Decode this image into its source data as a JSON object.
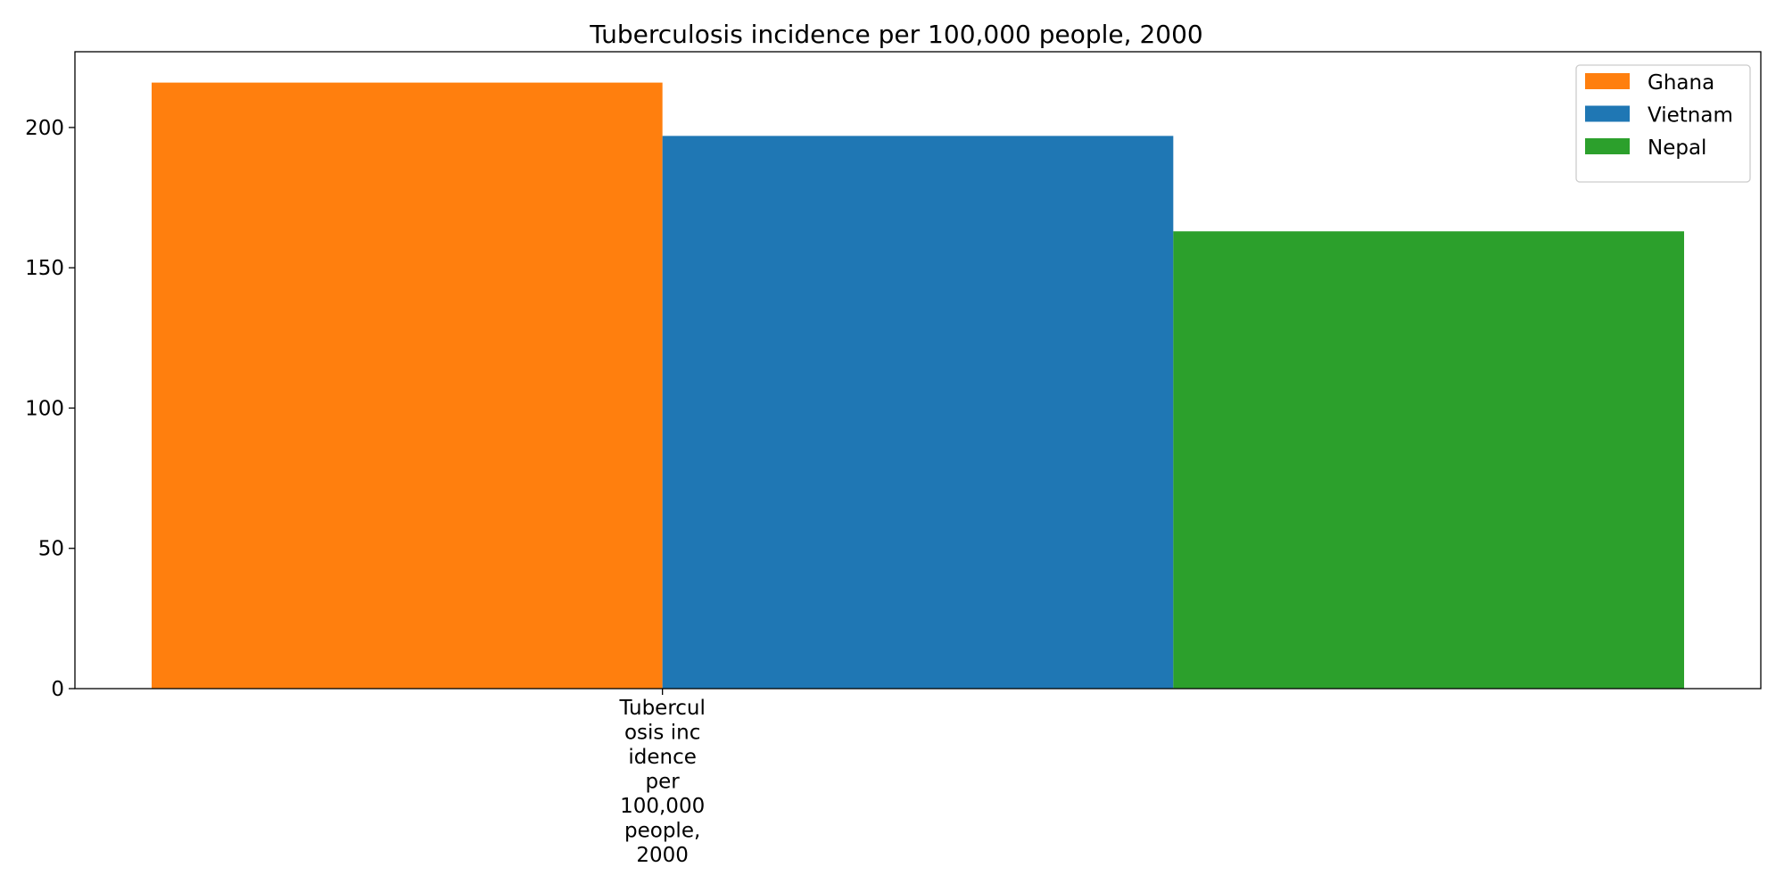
{
  "chart_data": {
    "type": "bar",
    "title": "Tuberculosis incidence per 100,000 people, 2000",
    "xlabel": "",
    "ylabel": "",
    "categories": [
      "Tuberculosis incidence per 100,000 people, 2000"
    ],
    "category_label_lines": [
      "Tubercul",
      "osis inc",
      "idence",
      "per",
      "100,000",
      "people,",
      "2000"
    ],
    "series": [
      {
        "name": "Ghana",
        "values": [
          216
        ],
        "color": "#ff7f0e"
      },
      {
        "name": "Vietnam",
        "values": [
          197
        ],
        "color": "#1f77b4"
      },
      {
        "name": "Nepal",
        "values": [
          163
        ],
        "color": "#2ca02c"
      }
    ],
    "ylim": [
      0,
      227
    ],
    "yticks": [
      0,
      50,
      100,
      150,
      200
    ],
    "grid": false,
    "legend_position": "top-right"
  }
}
